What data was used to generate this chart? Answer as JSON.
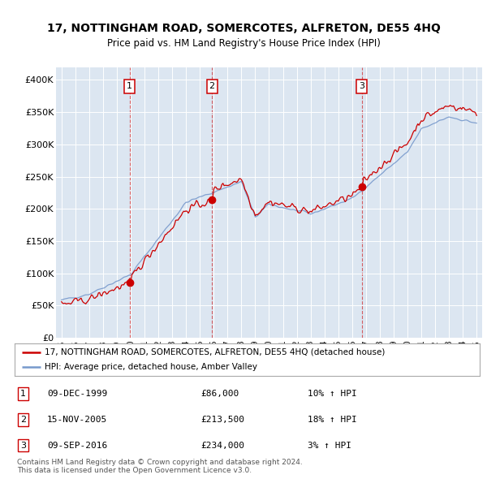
{
  "title": "17, NOTTINGHAM ROAD, SOMERCOTES, ALFRETON, DE55 4HQ",
  "subtitle": "Price paid vs. HM Land Registry's House Price Index (HPI)",
  "bg_color": "#dce6f1",
  "line1_color": "#cc0000",
  "line2_color": "#7799cc",
  "ylim": [
    0,
    420000
  ],
  "yticks": [
    0,
    50000,
    100000,
    150000,
    200000,
    250000,
    300000,
    350000,
    400000
  ],
  "ytick_labels": [
    "£0",
    "£50K",
    "£100K",
    "£150K",
    "£200K",
    "£250K",
    "£300K",
    "£350K",
    "£400K"
  ],
  "sale_year_floats": [
    1999.917,
    2005.875,
    2016.692
  ],
  "sale_prices": [
    86000,
    213500,
    234000
  ],
  "sale_labels": [
    "1",
    "2",
    "3"
  ],
  "legend_line1": "17, NOTTINGHAM ROAD, SOMERCOTES, ALFRETON, DE55 4HQ (detached house)",
  "legend_line2": "HPI: Average price, detached house, Amber Valley",
  "table_data": [
    [
      "1",
      "09-DEC-1999",
      "£86,000",
      "10% ↑ HPI"
    ],
    [
      "2",
      "15-NOV-2005",
      "£213,500",
      "18% ↑ HPI"
    ],
    [
      "3",
      "09-SEP-2016",
      "£234,000",
      "3% ↑ HPI"
    ]
  ],
  "footer": "Contains HM Land Registry data © Crown copyright and database right 2024.\nThis data is licensed under the Open Government Licence v3.0.",
  "xstart_year": 1995,
  "xend_year": 2025
}
